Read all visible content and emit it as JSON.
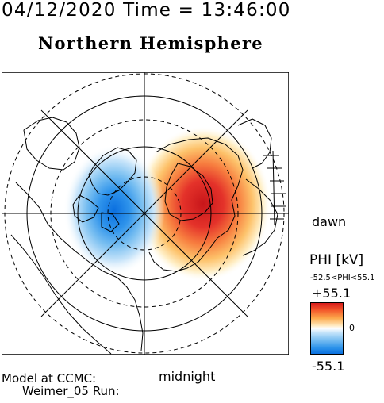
{
  "header": {
    "date_time": "04/12/2020 Time = 13:46:00",
    "title": "Northern Hemisphere"
  },
  "map": {
    "projection": "polar stereographic, north pole centered",
    "orientation_labels": {
      "right": "dawn",
      "bottom": "midnight"
    },
    "field": "PHI",
    "positive_cell": "dawnward side, red, centered right of pole",
    "negative_cell": "duskward side, blue, centered left of pole"
  },
  "legend": {
    "title": "PHI [kV]",
    "range_text": "-52.5<PHI<55.1",
    "max_label": "+55.1",
    "mid_label": "0",
    "min_label": "-55.1",
    "colors": {
      "max": "#d81c1c",
      "high": "#fca94c",
      "zero": "#ffffff",
      "low": "#7cc0f2",
      "min": "#0a70df"
    }
  },
  "footer": {
    "model_line1": "Model at CCMC:",
    "model_line2": "Weimer_05 Run:"
  }
}
